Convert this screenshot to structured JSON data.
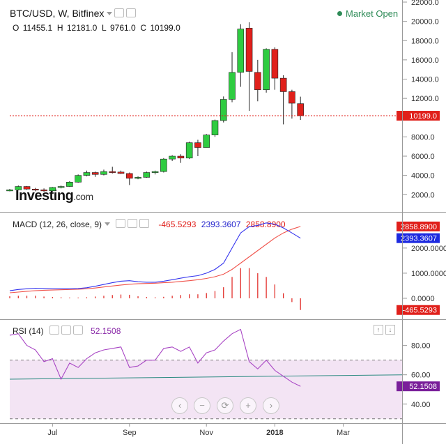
{
  "header": {
    "title": "BTC/USD, W, Bitfinex",
    "market_status": "Market Open",
    "ohlc": {
      "o_label": "O",
      "o": "11455.1",
      "h_label": "H",
      "h": "12181.0",
      "l_label": "L",
      "l": "9761.0",
      "c_label": "C",
      "c": "10199.0"
    }
  },
  "logo": {
    "brand": "Investing",
    "suffix": ".com"
  },
  "macd": {
    "title": "MACD (12, 26, close, 9)",
    "v_hist": "-465.5293",
    "v_macd": "2393.3607",
    "v_signal": "2858.8900"
  },
  "rsi": {
    "title": "RSI (14)",
    "value": "52.1508"
  },
  "colors": {
    "up": "#2ecc40",
    "down": "#e0201b",
    "macd_line": "#3333ee",
    "signal_line": "#f0524a",
    "rsi_line": "#a845c4",
    "rsi_band": "#f3e4f4",
    "trend": "#2a8a80"
  },
  "icons": [
    "settings-icon",
    "eye-icon",
    "close-icon",
    "zoom-out-icon",
    "reset-icon",
    "zoom-in-icon",
    "scroll-left-icon",
    "scroll-right-icon"
  ],
  "chart_data": [
    {
      "type": "candlestick",
      "title": "BTC/USD, W, Bitfinex",
      "x_ticks": [
        "Jul",
        "Sep",
        "Nov",
        "2018",
        "Mar"
      ],
      "y_ticks": [
        2000,
        4000,
        6000,
        8000,
        10000,
        12000,
        14000,
        16000,
        18000,
        20000,
        22000
      ],
      "ylim": [
        500,
        22000
      ],
      "last_price": 10199.0,
      "candles": [
        {
          "o": 2450,
          "h": 2600,
          "l": 2350,
          "c": 2500
        },
        {
          "o": 2500,
          "h": 2950,
          "l": 2450,
          "c": 2850
        },
        {
          "o": 2850,
          "h": 2900,
          "l": 2500,
          "c": 2580
        },
        {
          "o": 2580,
          "h": 2700,
          "l": 2350,
          "c": 2500
        },
        {
          "o": 2500,
          "h": 2650,
          "l": 2300,
          "c": 2400
        },
        {
          "o": 2400,
          "h": 2800,
          "l": 2300,
          "c": 2750
        },
        {
          "o": 2750,
          "h": 2950,
          "l": 2650,
          "c": 2850
        },
        {
          "o": 2850,
          "h": 3400,
          "l": 2800,
          "c": 3300
        },
        {
          "o": 3300,
          "h": 4100,
          "l": 3250,
          "c": 4000
        },
        {
          "o": 4000,
          "h": 4500,
          "l": 3900,
          "c": 4300
        },
        {
          "o": 4300,
          "h": 4400,
          "l": 3850,
          "c": 4100
        },
        {
          "o": 4100,
          "h": 4600,
          "l": 4000,
          "c": 4400
        },
        {
          "o": 4400,
          "h": 4900,
          "l": 4200,
          "c": 4350
        },
        {
          "o": 4350,
          "h": 4500,
          "l": 4150,
          "c": 4200
        },
        {
          "o": 4200,
          "h": 4300,
          "l": 3000,
          "c": 3700
        },
        {
          "o": 3700,
          "h": 3900,
          "l": 3600,
          "c": 3800
        },
        {
          "o": 3800,
          "h": 4400,
          "l": 3750,
          "c": 4300
        },
        {
          "o": 4300,
          "h": 4500,
          "l": 4100,
          "c": 4400
        },
        {
          "o": 4400,
          "h": 5800,
          "l": 4300,
          "c": 5700
        },
        {
          "o": 5700,
          "h": 6100,
          "l": 5500,
          "c": 6000
        },
        {
          "o": 6000,
          "h": 6200,
          "l": 5300,
          "c": 5800
        },
        {
          "o": 5800,
          "h": 7500,
          "l": 5700,
          "c": 7400
        },
        {
          "o": 7400,
          "h": 7700,
          "l": 6000,
          "c": 6900
        },
        {
          "o": 6900,
          "h": 8300,
          "l": 6900,
          "c": 8200
        },
        {
          "o": 8200,
          "h": 9800,
          "l": 8000,
          "c": 9700
        },
        {
          "o": 9700,
          "h": 12200,
          "l": 9500,
          "c": 11900
        },
        {
          "o": 11900,
          "h": 16800,
          "l": 11600,
          "c": 14700
        },
        {
          "o": 14700,
          "h": 19700,
          "l": 13200,
          "c": 19200
        },
        {
          "o": 19300,
          "h": 19900,
          "l": 10700,
          "c": 14800
        },
        {
          "o": 14700,
          "h": 16000,
          "l": 11700,
          "c": 12900
        },
        {
          "o": 12900,
          "h": 17200,
          "l": 12600,
          "c": 17100
        },
        {
          "o": 17100,
          "h": 17300,
          "l": 12900,
          "c": 14100
        },
        {
          "o": 14100,
          "h": 14400,
          "l": 9300,
          "c": 12700
        },
        {
          "o": 12700,
          "h": 12900,
          "l": 9900,
          "c": 11500
        },
        {
          "o": 11455.1,
          "h": 12181.0,
          "l": 9761.0,
          "c": 10199.0
        }
      ]
    },
    {
      "type": "line",
      "title": "MACD (12, 26, close, 9)",
      "y_ticks": [
        0,
        1000,
        2000
      ],
      "ylim": [
        -750,
        3300
      ],
      "series": [
        {
          "name": "MACD",
          "values": [
            300,
            350,
            380,
            400,
            390,
            380,
            380,
            380,
            390,
            420,
            480,
            550,
            620,
            680,
            700,
            660,
            640,
            640,
            680,
            740,
            800,
            860,
            900,
            1000,
            1150,
            1400,
            2000,
            2600,
            2850,
            2900,
            3000,
            2950,
            2800,
            2600,
            2393.3607
          ]
        },
        {
          "name": "Signal",
          "values": [
            220,
            250,
            280,
            300,
            320,
            330,
            340,
            350,
            360,
            380,
            410,
            450,
            490,
            530,
            560,
            580,
            590,
            600,
            620,
            640,
            670,
            700,
            740,
            790,
            860,
            960,
            1150,
            1400,
            1650,
            1900,
            2150,
            2400,
            2600,
            2750,
            2858.89
          ]
        },
        {
          "name": "Histogram",
          "values": [
            80,
            100,
            100,
            100,
            70,
            50,
            40,
            30,
            30,
            40,
            70,
            100,
            130,
            150,
            140,
            80,
            50,
            40,
            60,
            100,
            130,
            160,
            160,
            210,
            290,
            440,
            850,
            1200,
            1200,
            1000,
            850,
            550,
            200,
            -150,
            -465.5293
          ]
        }
      ]
    },
    {
      "type": "line",
      "title": "RSI (14)",
      "y_ticks": [
        40,
        60,
        80
      ],
      "ylim": [
        28,
        96
      ],
      "band": [
        30,
        70
      ],
      "series": [
        {
          "name": "RSI",
          "values": [
            87,
            88,
            80,
            77,
            69,
            71,
            57,
            68,
            65,
            71,
            75,
            77,
            78,
            79,
            65,
            66,
            70,
            70,
            78,
            79,
            76,
            79,
            68,
            75,
            77,
            83,
            88,
            91,
            69,
            64,
            70,
            63,
            59,
            55,
            52.1508
          ]
        },
        {
          "name": "Trend",
          "values": [
            57,
            60
          ]
        }
      ]
    }
  ]
}
